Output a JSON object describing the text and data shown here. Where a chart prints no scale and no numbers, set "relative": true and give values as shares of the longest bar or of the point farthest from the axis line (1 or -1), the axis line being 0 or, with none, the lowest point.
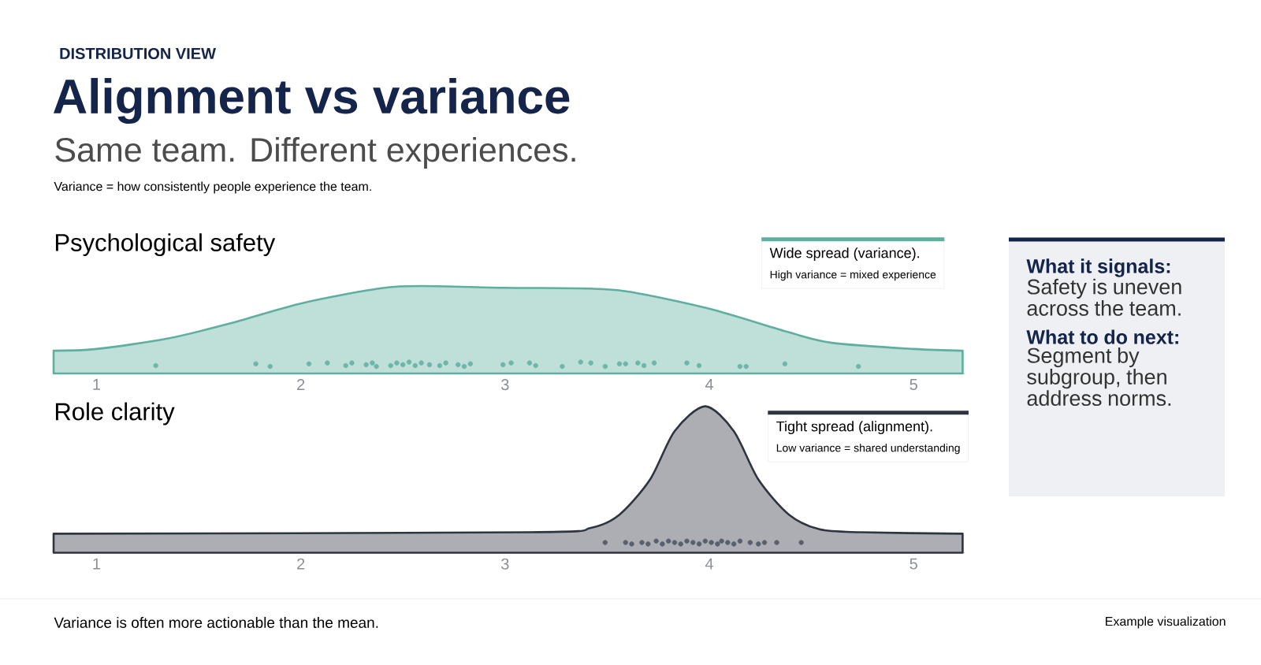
{
  "chart_data": [
    {
      "type": "other",
      "title": "Alignment vs variance",
      "subtitle": "Same team. Different experiences.",
      "annotations": [
        "DISTRIBUTION VIEW",
        "Variance = how consistently people experience the team.",
        "Variance is often more actionable than the mean.",
        "Example visualization"
      ]
    },
    {
      "type": "area",
      "title": "Psychological safety",
      "relative": true,
      "xlim": [
        0.79,
        5.25
      ],
      "xticks": [
        1,
        2,
        3,
        4,
        5
      ],
      "annotations": [
        "Wide spread (variance).",
        "High variance = mixed experience"
      ],
      "series": [
        {
          "color": "#5fae9f",
          "x": [
            0.79,
            1.0,
            1.35,
            1.65,
            2.0,
            2.38,
            2.59,
            3.0,
            3.42,
            3.62,
            4.0,
            4.39,
            4.6,
            5.0,
            5.24
          ],
          "values": [
            0.26,
            0.28,
            0.4,
            0.57,
            0.8,
            0.97,
            1.0,
            0.98,
            0.97,
            0.93,
            0.74,
            0.47,
            0.35,
            0.28,
            0.26
          ]
        },
        {
          "type": "scatter",
          "color": "#6fb5a8",
          "x": [
            1.29,
            1.78,
            1.85,
            2.04,
            2.13,
            2.22,
            2.25,
            2.32,
            2.35,
            2.37,
            2.44,
            2.47,
            2.5,
            2.53,
            2.56,
            2.59,
            2.63,
            2.68,
            2.71,
            2.77,
            2.8,
            2.83,
            2.99,
            3.03,
            3.12,
            3.15,
            3.28,
            3.37,
            3.42,
            3.49,
            3.56,
            3.59,
            3.65,
            3.68,
            3.73,
            3.89,
            3.95,
            4.15,
            4.18,
            4.37,
            4.73
          ],
          "values": [
            0.09,
            0.11,
            0.08,
            0.11,
            0.12,
            0.09,
            0.12,
            0.1,
            0.12,
            0.08,
            0.09,
            0.12,
            0.1,
            0.13,
            0.09,
            0.12,
            0.1,
            0.09,
            0.12,
            0.1,
            0.08,
            0.11,
            0.1,
            0.12,
            0.12,
            0.09,
            0.08,
            0.13,
            0.12,
            0.08,
            0.11,
            0.11,
            0.12,
            0.09,
            0.12,
            0.12,
            0.09,
            0.08,
            0.08,
            0.11,
            0.08
          ]
        }
      ]
    },
    {
      "type": "area",
      "title": "Role clarity",
      "relative": true,
      "xlim": [
        0.79,
        5.25
      ],
      "xticks": [
        1,
        2,
        3,
        4,
        5
      ],
      "annotations": [
        "Tight spread (alignment).",
        "Low variance = shared understanding"
      ],
      "series": [
        {
          "color": "#2f3540",
          "x": [
            0.79,
            3.12,
            3.42,
            3.56,
            3.71,
            3.83,
            3.98,
            4.12,
            4.24,
            4.39,
            4.54,
            4.74,
            5.24
          ],
          "values": [
            0.13,
            0.14,
            0.17,
            0.26,
            0.5,
            0.83,
            1.0,
            0.83,
            0.5,
            0.26,
            0.16,
            0.14,
            0.13
          ]
        },
        {
          "type": "scatter",
          "color": "#59606c",
          "x": [
            3.49,
            3.59,
            3.62,
            3.67,
            3.7,
            3.74,
            3.77,
            3.8,
            3.83,
            3.86,
            3.89,
            3.92,
            3.95,
            3.98,
            4.01,
            4.04,
            4.06,
            4.09,
            4.12,
            4.15,
            4.2,
            4.24,
            4.27,
            4.33,
            4.45
          ],
          "values": [
            0.07,
            0.07,
            0.06,
            0.07,
            0.06,
            0.08,
            0.06,
            0.08,
            0.07,
            0.06,
            0.08,
            0.07,
            0.06,
            0.08,
            0.07,
            0.06,
            0.08,
            0.07,
            0.06,
            0.08,
            0.07,
            0.06,
            0.07,
            0.07,
            0.07
          ]
        }
      ]
    },
    {
      "type": "other",
      "annotations": [
        "What it signals:",
        "Safety is uneven across the team.",
        "What to do next:",
        "Segment by subgroup, then address norms."
      ]
    }
  ]
}
